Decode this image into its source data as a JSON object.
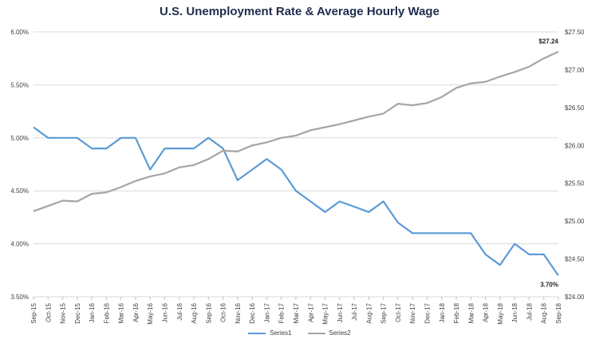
{
  "chart_data": {
    "type": "line",
    "title": "U.S. Unemployment Rate & Average Hourly Wage",
    "categories": [
      "Sep-15",
      "Oct-15",
      "Nov-15",
      "Dec-15",
      "Jan-16",
      "Feb-16",
      "Mar-16",
      "Apr-16",
      "May-16",
      "Jun-16",
      "Jul-16",
      "Aug-16",
      "Sep-16",
      "Oct-16",
      "Nov-16",
      "Dec-16",
      "Jan-17",
      "Feb-17",
      "Mar-17",
      "Apr-17",
      "May-17",
      "Jun-17",
      "Jul-17",
      "Aug-17",
      "Sep-17",
      "Oct-17",
      "Nov-17",
      "Dec-17",
      "Jan-18",
      "Feb-18",
      "Mar-18",
      "Apr-18",
      "May-18",
      "Jun-18",
      "Jul-18",
      "Aug-18",
      "Sep-18"
    ],
    "left_axis": {
      "min": 3.5,
      "max": 6.0,
      "ticks": [
        "3.50%",
        "4.00%",
        "4.50%",
        "5.00%",
        "5.50%",
        "6.00%"
      ],
      "tick_values": [
        3.5,
        4.0,
        4.5,
        5.0,
        5.5,
        6.0
      ]
    },
    "right_axis": {
      "min": 24.0,
      "max": 27.5,
      "ticks": [
        "$24.00",
        "$24.50",
        "$25.00",
        "$25.50",
        "$26.00",
        "$26.50",
        "$27.00",
        "$27.50"
      ],
      "tick_values": [
        24.0,
        24.5,
        25.0,
        25.5,
        26.0,
        26.5,
        27.0,
        27.5
      ]
    },
    "grid": true,
    "legend_position": "bottom",
    "series": [
      {
        "name": "Series1",
        "axis": "left",
        "color": "#5b9bd5",
        "values": [
          5.1,
          5.0,
          5.0,
          5.0,
          4.9,
          4.9,
          5.0,
          5.0,
          4.7,
          4.9,
          4.9,
          4.9,
          5.0,
          4.9,
          4.6,
          4.7,
          4.8,
          4.7,
          4.5,
          4.4,
          4.3,
          4.4,
          4.35,
          4.3,
          4.4,
          4.2,
          4.1,
          4.1,
          4.1,
          4.1,
          4.1,
          3.9,
          3.8,
          4.0,
          3.9,
          3.9,
          3.7
        ]
      },
      {
        "name": "Series2",
        "axis": "right",
        "color": "#a5a5a5",
        "values": [
          25.13,
          25.2,
          25.27,
          25.26,
          25.36,
          25.38,
          25.45,
          25.53,
          25.59,
          25.63,
          25.71,
          25.74,
          25.82,
          25.93,
          25.92,
          26.0,
          26.04,
          26.1,
          26.13,
          26.2,
          26.24,
          26.28,
          26.33,
          26.38,
          26.42,
          26.55,
          26.53,
          26.56,
          26.64,
          26.76,
          26.82,
          26.84,
          26.91,
          26.97,
          27.04,
          27.15,
          27.24
        ]
      }
    ],
    "annotations": [
      {
        "series": "Series1",
        "index": 36,
        "text": "3.70%"
      },
      {
        "series": "Series2",
        "index": 36,
        "text": "$27.24"
      }
    ]
  }
}
